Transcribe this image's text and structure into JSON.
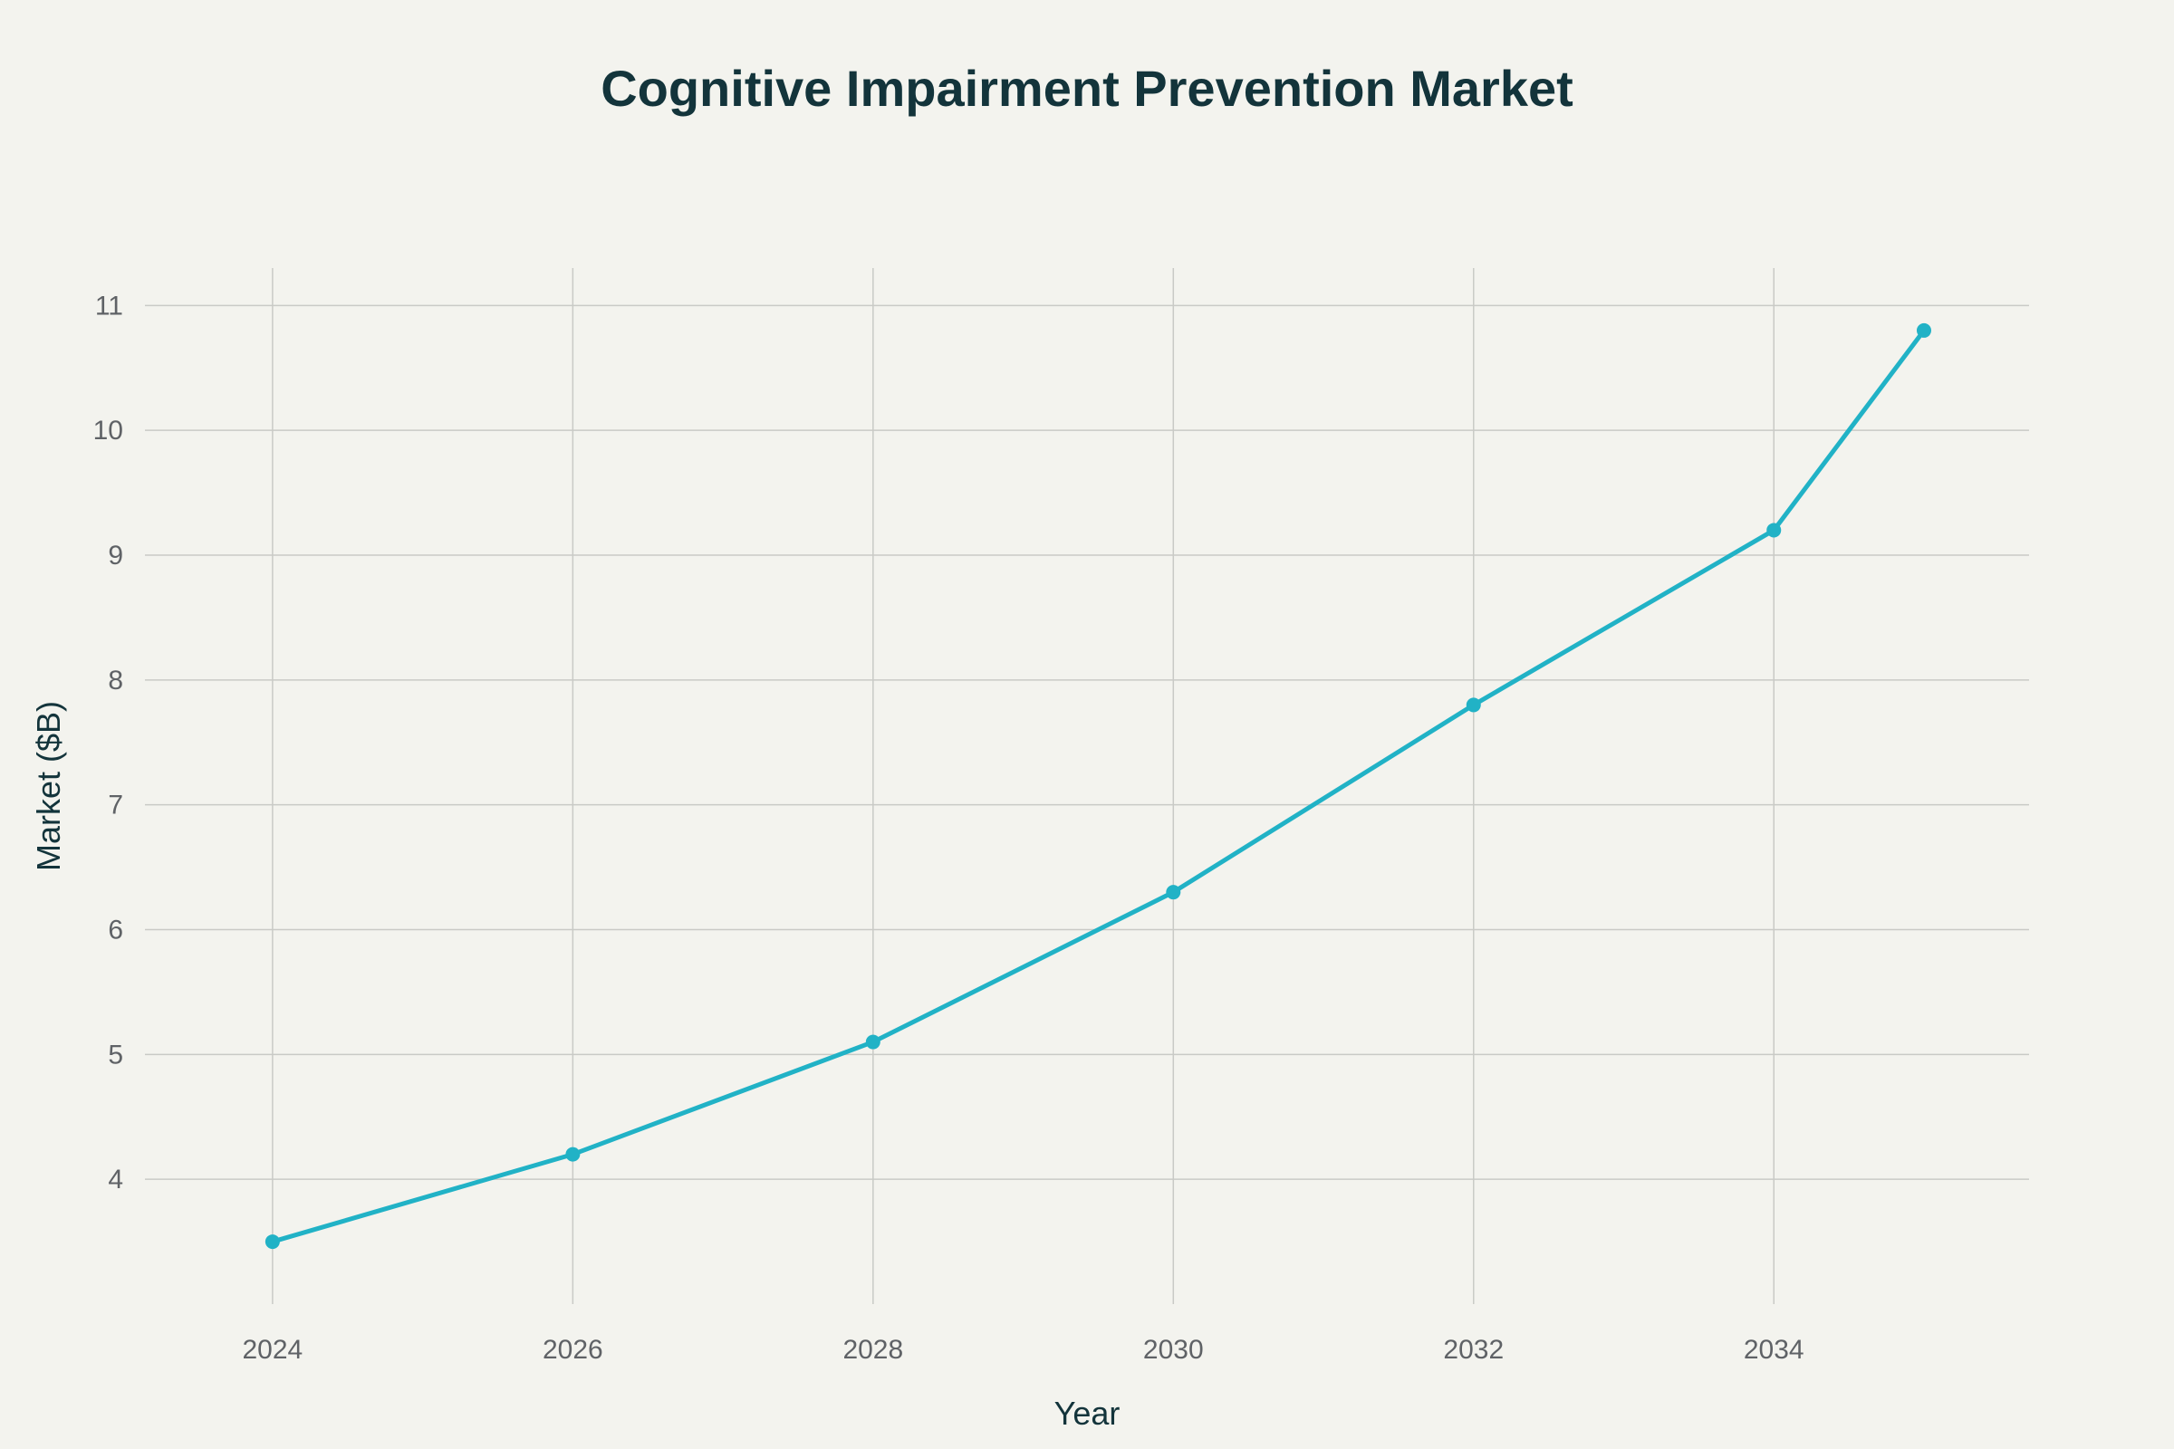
{
  "chart_data": {
    "type": "line",
    "title": "Cognitive Impairment Prevention Market",
    "xlabel": "Year",
    "ylabel": "Market ($B)",
    "x": [
      2024,
      2026,
      2028,
      2030,
      2032,
      2034,
      2035
    ],
    "series": [
      {
        "values": [
          3.5,
          4.2,
          5.1,
          6.3,
          7.8,
          9.2,
          10.8
        ]
      }
    ],
    "xticks": [
      "2024",
      "2026",
      "2028",
      "2030",
      "2032",
      "2034"
    ],
    "yticks": [
      "4",
      "5",
      "6",
      "7",
      "8",
      "9",
      "10",
      "11"
    ],
    "xlim": [
      2023.15,
      2035.7
    ],
    "ylim": [
      3.0,
      11.3
    ],
    "grid": true,
    "legend": "none",
    "colors": {
      "line": "#21b2c6",
      "background": "#f3f3ee",
      "grid": "#c9cac6",
      "title": "#13343b",
      "tick": "#5f6266"
    }
  }
}
